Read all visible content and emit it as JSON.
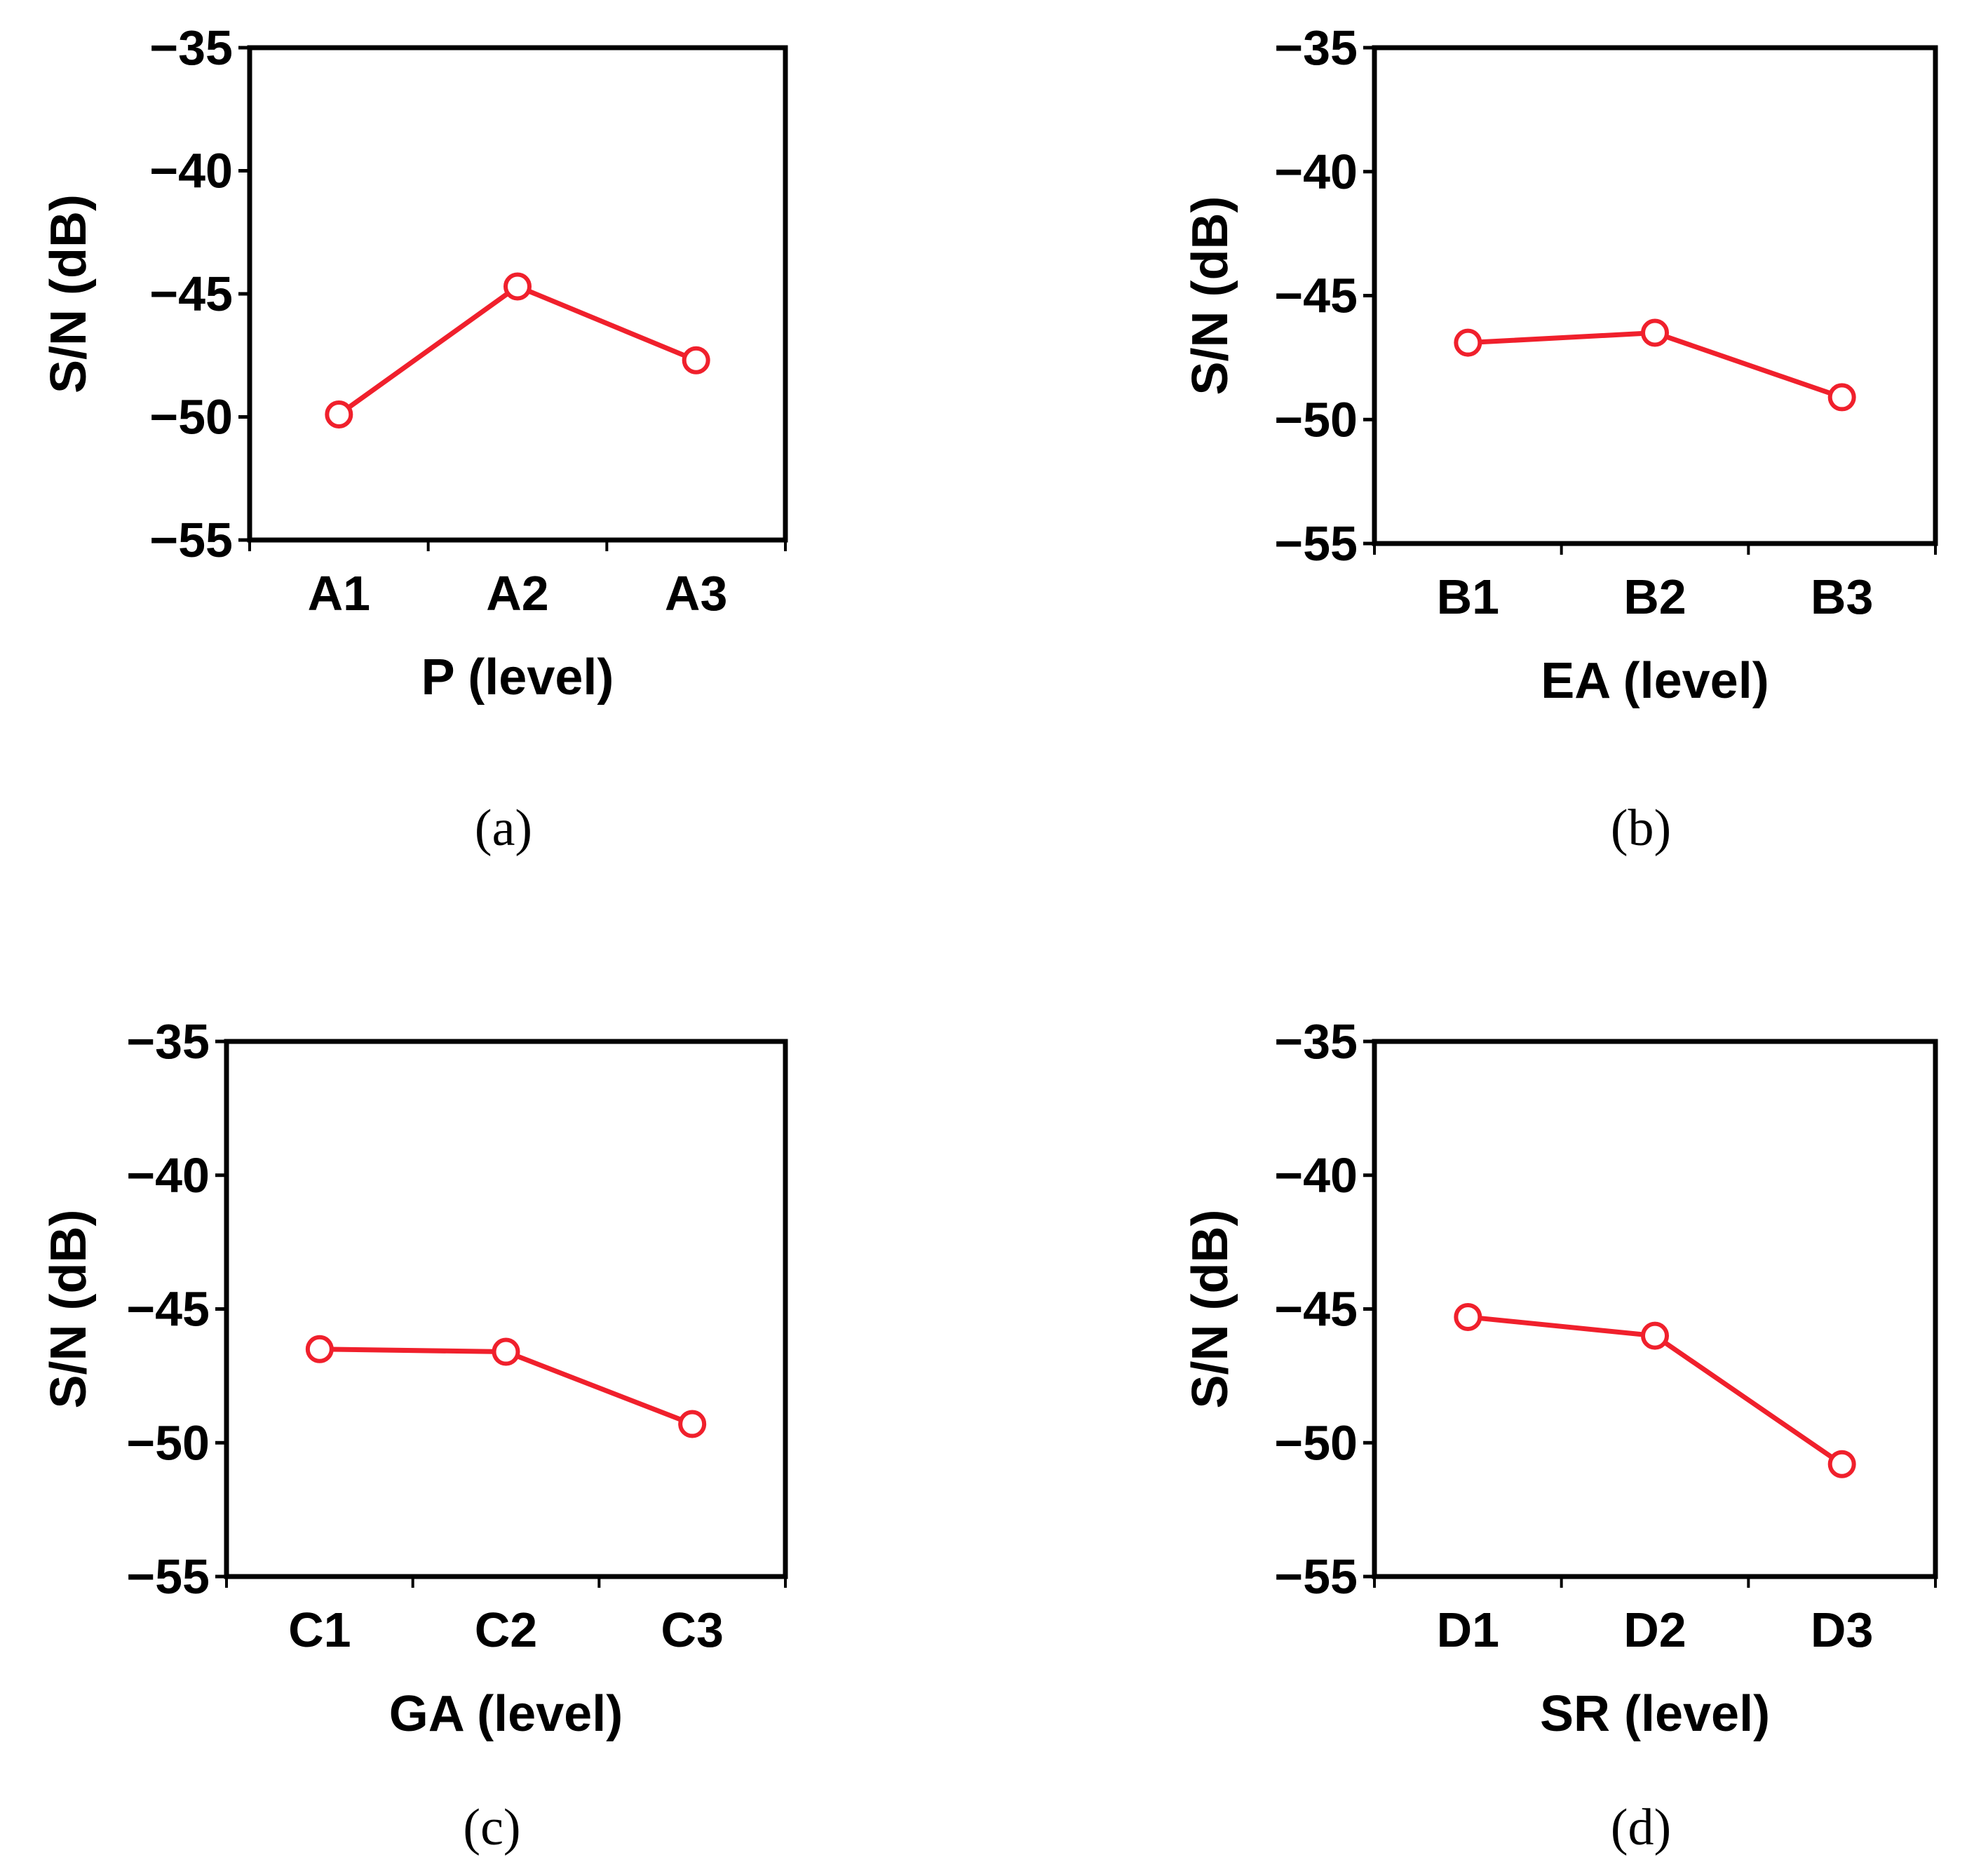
{
  "colors": {
    "series": "#f0202c",
    "axis": "#000000",
    "background": "#ffffff"
  },
  "chart_data": [
    {
      "type": "line",
      "panel_label": "(a)",
      "categories": [
        "A1",
        "A2",
        "A3"
      ],
      "ytick_labels": [
        "−35",
        "−40",
        "−45",
        "−50",
        "−55"
      ],
      "series": [
        {
          "name": "S/N",
          "values": [
            -49.9,
            -44.7,
            -47.7
          ]
        }
      ],
      "xlabel": "P (level)",
      "ylabel": "S/N (dB)",
      "ylim": [
        -55,
        -35
      ],
      "yticks": [
        -35,
        -40,
        -45,
        -50,
        -55
      ],
      "grid": false
    },
    {
      "type": "line",
      "panel_label": "(b)",
      "categories": [
        "B1",
        "B2",
        "B3"
      ],
      "ytick_labels": [
        "−35",
        "−40",
        "−45",
        "−50",
        "−55"
      ],
      "series": [
        {
          "name": "S/N",
          "values": [
            -46.9,
            -46.5,
            -49.1
          ]
        }
      ],
      "xlabel": "EA (level)",
      "ylabel": "S/N (dB)",
      "ylim": [
        -55,
        -35
      ],
      "yticks": [
        -35,
        -40,
        -45,
        -50,
        -55
      ],
      "grid": false
    },
    {
      "type": "line",
      "panel_label": "(c)",
      "categories": [
        "C1",
        "C2",
        "C3"
      ],
      "ytick_labels": [
        "−35",
        "−40",
        "−45",
        "−50",
        "−55"
      ],
      "series": [
        {
          "name": "S/N",
          "values": [
            -46.5,
            -46.6,
            -49.3
          ]
        }
      ],
      "xlabel": "GA (level)",
      "ylabel": "S/N (dB)",
      "ylim": [
        -55,
        -35
      ],
      "yticks": [
        -35,
        -40,
        -45,
        -50,
        -55
      ],
      "grid": false
    },
    {
      "type": "line",
      "panel_label": "(d)",
      "categories": [
        "D1",
        "D2",
        "D3"
      ],
      "ytick_labels": [
        "−35",
        "−40",
        "−45",
        "−50",
        "−55"
      ],
      "series": [
        {
          "name": "S/N",
          "values": [
            -45.3,
            -46.0,
            -50.8
          ]
        }
      ],
      "xlabel": "SR (level)",
      "ylabel": "S/N (dB)",
      "ylim": [
        -55,
        -35
      ],
      "yticks": [
        -35,
        -40,
        -45,
        -50,
        -55
      ],
      "grid": false
    }
  ]
}
